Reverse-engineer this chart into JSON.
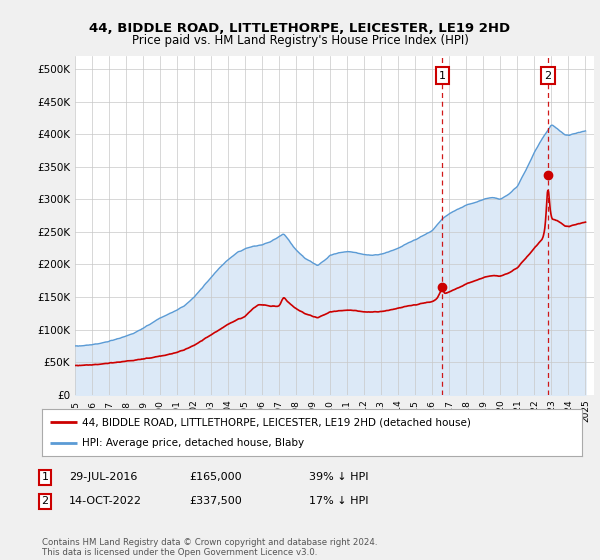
{
  "title1": "44, BIDDLE ROAD, LITTLETHORPE, LEICESTER, LE19 2HD",
  "title2": "Price paid vs. HM Land Registry's House Price Index (HPI)",
  "ylabel_ticks": [
    "£0",
    "£50K",
    "£100K",
    "£150K",
    "£200K",
    "£250K",
    "£300K",
    "£350K",
    "£400K",
    "£450K",
    "£500K"
  ],
  "ytick_values": [
    0,
    50000,
    100000,
    150000,
    200000,
    250000,
    300000,
    350000,
    400000,
    450000,
    500000
  ],
  "ylim": [
    0,
    520000
  ],
  "xlim_start": 1995.0,
  "xlim_end": 2025.5,
  "hpi_color": "#5b9bd5",
  "hpi_fill_color": "#dce9f7",
  "price_color": "#cc0000",
  "dashed_line_color": "#cc0000",
  "background_color": "#f0f0f0",
  "plot_bg_color": "#ffffff",
  "sale1_x": 2016.58,
  "sale1_y": 165000,
  "sale2_x": 2022.79,
  "sale2_y": 337500,
  "legend1": "44, BIDDLE ROAD, LITTLETHORPE, LEICESTER, LE19 2HD (detached house)",
  "legend2": "HPI: Average price, detached house, Blaby",
  "footer": "Contains HM Land Registry data © Crown copyright and database right 2024.\nThis data is licensed under the Open Government Licence v3.0.",
  "xticks": [
    1995,
    1996,
    1997,
    1998,
    1999,
    2000,
    2001,
    2002,
    2003,
    2004,
    2005,
    2006,
    2007,
    2008,
    2009,
    2010,
    2011,
    2012,
    2013,
    2014,
    2015,
    2016,
    2017,
    2018,
    2019,
    2020,
    2021,
    2022,
    2023,
    2024,
    2025
  ],
  "hpi_keypoints": [
    [
      1995.0,
      75000
    ],
    [
      1995.5,
      75500
    ],
    [
      1996.0,
      77000
    ],
    [
      1996.5,
      79000
    ],
    [
      1997.0,
      82000
    ],
    [
      1997.5,
      86000
    ],
    [
      1998.0,
      90000
    ],
    [
      1998.5,
      95000
    ],
    [
      1999.0,
      102000
    ],
    [
      1999.5,
      110000
    ],
    [
      2000.0,
      118000
    ],
    [
      2000.5,
      124000
    ],
    [
      2001.0,
      130000
    ],
    [
      2001.5,
      138000
    ],
    [
      2002.0,
      150000
    ],
    [
      2002.5,
      165000
    ],
    [
      2003.0,
      180000
    ],
    [
      2003.5,
      195000
    ],
    [
      2004.0,
      207000
    ],
    [
      2004.5,
      218000
    ],
    [
      2005.0,
      224000
    ],
    [
      2005.5,
      228000
    ],
    [
      2006.0,
      230000
    ],
    [
      2006.5,
      235000
    ],
    [
      2007.0,
      243000
    ],
    [
      2007.25,
      247000
    ],
    [
      2007.5,
      240000
    ],
    [
      2007.75,
      230000
    ],
    [
      2008.0,
      222000
    ],
    [
      2008.5,
      210000
    ],
    [
      2009.0,
      202000
    ],
    [
      2009.25,
      198000
    ],
    [
      2009.5,
      203000
    ],
    [
      2009.75,
      208000
    ],
    [
      2010.0,
      214000
    ],
    [
      2010.5,
      218000
    ],
    [
      2011.0,
      220000
    ],
    [
      2011.5,
      218000
    ],
    [
      2012.0,
      215000
    ],
    [
      2012.5,
      214000
    ],
    [
      2013.0,
      216000
    ],
    [
      2013.5,
      220000
    ],
    [
      2014.0,
      225000
    ],
    [
      2014.5,
      232000
    ],
    [
      2015.0,
      238000
    ],
    [
      2015.5,
      245000
    ],
    [
      2016.0,
      252000
    ],
    [
      2016.58,
      270000
    ],
    [
      2017.0,
      278000
    ],
    [
      2017.5,
      285000
    ],
    [
      2018.0,
      291000
    ],
    [
      2018.5,
      295000
    ],
    [
      2019.0,
      300000
    ],
    [
      2019.5,
      303000
    ],
    [
      2020.0,
      300000
    ],
    [
      2020.5,
      308000
    ],
    [
      2021.0,
      320000
    ],
    [
      2021.5,
      345000
    ],
    [
      2022.0,
      372000
    ],
    [
      2022.5,
      395000
    ],
    [
      2022.79,
      406000
    ],
    [
      2023.0,
      415000
    ],
    [
      2023.25,
      410000
    ],
    [
      2023.5,
      405000
    ],
    [
      2023.75,
      400000
    ],
    [
      2024.0,
      398000
    ],
    [
      2024.5,
      402000
    ],
    [
      2025.0,
      405000
    ]
  ],
  "price_keypoints": [
    [
      1995.0,
      45000
    ],
    [
      1995.5,
      45500
    ],
    [
      1996.0,
      46000
    ],
    [
      1996.5,
      47000
    ],
    [
      1997.0,
      48500
    ],
    [
      1997.5,
      50000
    ],
    [
      1998.0,
      51500
    ],
    [
      1998.5,
      53000
    ],
    [
      1999.0,
      55000
    ],
    [
      1999.5,
      57000
    ],
    [
      2000.0,
      59500
    ],
    [
      2000.5,
      62000
    ],
    [
      2001.0,
      65000
    ],
    [
      2001.5,
      70000
    ],
    [
      2002.0,
      76000
    ],
    [
      2002.5,
      84000
    ],
    [
      2003.0,
      92000
    ],
    [
      2003.5,
      100000
    ],
    [
      2004.0,
      108000
    ],
    [
      2004.5,
      115000
    ],
    [
      2005.0,
      120000
    ],
    [
      2005.25,
      127000
    ],
    [
      2005.5,
      133000
    ],
    [
      2005.75,
      138000
    ],
    [
      2006.0,
      138000
    ],
    [
      2006.5,
      136000
    ],
    [
      2007.0,
      136000
    ],
    [
      2007.25,
      150000
    ],
    [
      2007.5,
      143000
    ],
    [
      2007.75,
      137000
    ],
    [
      2008.0,
      132000
    ],
    [
      2008.5,
      125000
    ],
    [
      2009.0,
      120000
    ],
    [
      2009.25,
      118000
    ],
    [
      2009.5,
      121000
    ],
    [
      2009.75,
      124000
    ],
    [
      2010.0,
      127000
    ],
    [
      2010.5,
      129000
    ],
    [
      2011.0,
      130000
    ],
    [
      2011.5,
      129000
    ],
    [
      2012.0,
      127000
    ],
    [
      2012.5,
      127000
    ],
    [
      2013.0,
      128000
    ],
    [
      2013.5,
      130000
    ],
    [
      2014.0,
      133000
    ],
    [
      2014.5,
      136000
    ],
    [
      2015.0,
      138000
    ],
    [
      2015.5,
      141000
    ],
    [
      2016.0,
      143000
    ],
    [
      2016.3,
      148000
    ],
    [
      2016.58,
      165000
    ],
    [
      2016.7,
      155000
    ],
    [
      2017.0,
      158000
    ],
    [
      2017.5,
      164000
    ],
    [
      2018.0,
      170000
    ],
    [
      2018.5,
      175000
    ],
    [
      2019.0,
      180000
    ],
    [
      2019.5,
      183000
    ],
    [
      2020.0,
      182000
    ],
    [
      2020.5,
      187000
    ],
    [
      2021.0,
      195000
    ],
    [
      2021.5,
      210000
    ],
    [
      2022.0,
      225000
    ],
    [
      2022.5,
      240000
    ],
    [
      2022.65,
      260000
    ],
    [
      2022.75,
      310000
    ],
    [
      2022.79,
      337500
    ],
    [
      2022.85,
      300000
    ],
    [
      2022.95,
      280000
    ],
    [
      2023.0,
      270000
    ],
    [
      2023.25,
      268000
    ],
    [
      2023.5,
      265000
    ],
    [
      2023.75,
      260000
    ],
    [
      2024.0,
      258000
    ],
    [
      2024.5,
      262000
    ],
    [
      2025.0,
      265000
    ]
  ]
}
